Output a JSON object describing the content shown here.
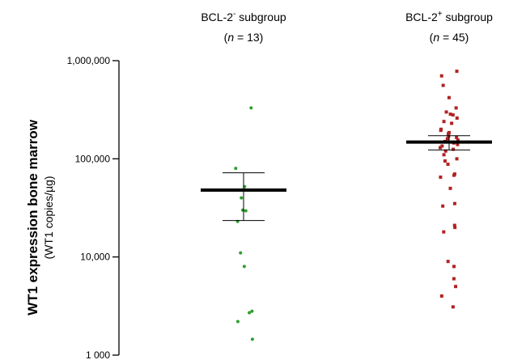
{
  "chart_data": {
    "type": "scatter",
    "ylabel": "WT1 expression bone marrow",
    "ylabel_unit": "(WT1 copies/µg)",
    "y_scale": "log",
    "ylim": [
      1000,
      1000000
    ],
    "y_ticks": [
      1000,
      10000,
      100000,
      1000000
    ],
    "y_tick_labels": [
      "1 000",
      "10,000",
      "100,000",
      "1,000,000"
    ],
    "grid": false,
    "groups": [
      {
        "label_main": "BCL-2",
        "label_sup": "-",
        "label_rest": " subgroup",
        "n_prefix": "(",
        "n_italic": "n",
        "n_suffix": " = 13)",
        "color": "#2e9e2e",
        "marker": "circle",
        "mean": 48000,
        "error_low": 23500,
        "error_high": 72000,
        "values": [
          330000,
          80000,
          52000,
          40000,
          30000,
          29500,
          23000,
          11000,
          8000,
          2800,
          2700,
          2200,
          1450
        ]
      },
      {
        "label_main": "BCL-2",
        "label_sup": "+",
        "label_rest": " subgroup",
        "n_prefix": "(",
        "n_italic": "n",
        "n_suffix": " = 45)",
        "color": "#b22222",
        "marker": "square",
        "mean": 148000,
        "error_low": 123000,
        "error_high": 172000,
        "values": [
          780000,
          700000,
          560000,
          420000,
          330000,
          300000,
          285000,
          280000,
          260000,
          240000,
          230000,
          200000,
          195000,
          185000,
          180000,
          170000,
          165000,
          160000,
          155000,
          150000,
          145000,
          140000,
          135000,
          130000,
          125000,
          120000,
          110000,
          100000,
          95000,
          88000,
          70000,
          68000,
          65000,
          50000,
          35000,
          33000,
          21000,
          20000,
          18000,
          9000,
          8000,
          6000,
          5000,
          4000,
          3100
        ]
      }
    ]
  }
}
